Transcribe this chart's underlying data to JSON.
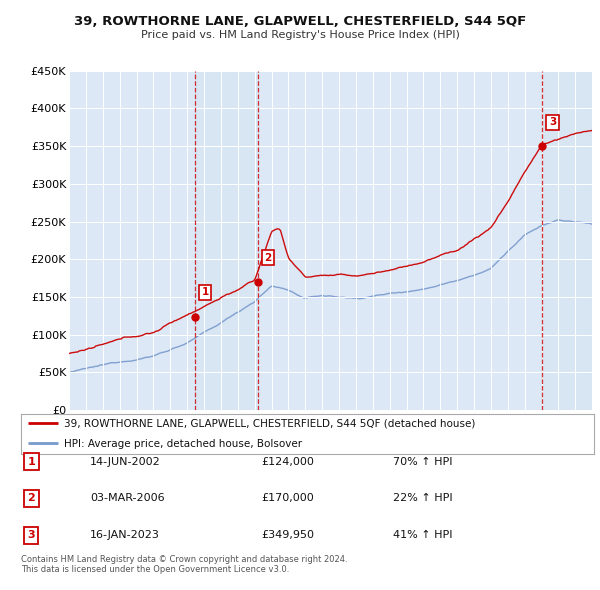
{
  "title": "39, ROWTHORNE LANE, GLAPWELL, CHESTERFIELD, S44 5QF",
  "subtitle": "Price paid vs. HM Land Registry's House Price Index (HPI)",
  "ylim": [
    0,
    450000
  ],
  "yticks": [
    0,
    50000,
    100000,
    150000,
    200000,
    250000,
    300000,
    350000,
    400000,
    450000
  ],
  "background_color": "#ffffff",
  "plot_bg_color": "#dce8f5",
  "transactions": [
    {
      "date_num": 2002.45,
      "price": 124000,
      "label": "1"
    },
    {
      "date_num": 2006.17,
      "price": 170000,
      "label": "2"
    },
    {
      "date_num": 2023.04,
      "price": 349950,
      "label": "3"
    }
  ],
  "legend_entries": [
    {
      "label": "39, ROWTHORNE LANE, GLAPWELL, CHESTERFIELD, S44 5QF (detached house)",
      "color": "#cc0000"
    },
    {
      "label": "HPI: Average price, detached house, Bolsover",
      "color": "#7799cc"
    }
  ],
  "table_rows": [
    {
      "num": "1",
      "date": "14-JUN-2002",
      "price": "£124,000",
      "hpi": "70% ↑ HPI"
    },
    {
      "num": "2",
      "date": "03-MAR-2006",
      "price": "£170,000",
      "hpi": "22% ↑ HPI"
    },
    {
      "num": "3",
      "date": "16-JAN-2023",
      "price": "£349,950",
      "hpi": "41% ↑ HPI"
    }
  ],
  "footer": "Contains HM Land Registry data © Crown copyright and database right 2024.\nThis data is licensed under the Open Government Licence v3.0.",
  "xmin": 1995,
  "xmax": 2026
}
